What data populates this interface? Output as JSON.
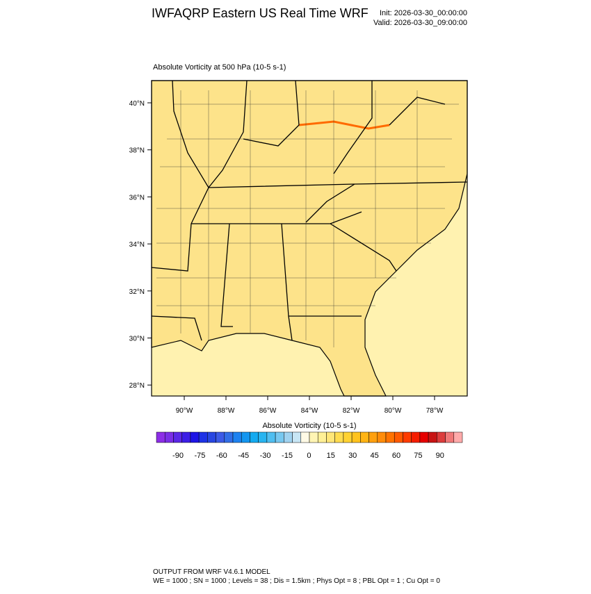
{
  "header": {
    "title": "IWFAQRP Eastern US Real Time WRF",
    "init": "Init: 2026-03-30_00:00:00",
    "valid": "Valid: 2026-03-30_09:00:00"
  },
  "map": {
    "subtitle": "Absolute Vorticity at 500 hPa   (10-5 s-1)",
    "lat_labels": [
      "40°N",
      "38°N",
      "36°N",
      "34°N",
      "32°N",
      "30°N",
      "28°N"
    ],
    "lon_labels": [
      "90°W",
      "88°W",
      "86°W",
      "84°W",
      "82°W",
      "80°W",
      "78°W"
    ]
  },
  "colorbar": {
    "title": "Absolute Vorticity  (10-5 s-1)",
    "labels": [
      -90,
      -75,
      -60,
      -45,
      -30,
      -15,
      0,
      15,
      30,
      45,
      60,
      75,
      90
    ],
    "colors": [
      "#8c2ee6",
      "#7a2ee6",
      "#5a28e6",
      "#3c1ee6",
      "#1e14e6",
      "#1e32e6",
      "#2846e1",
      "#3c5ae6",
      "#326ee6",
      "#1e82f0",
      "#1496f0",
      "#14aaf0",
      "#28b4f0",
      "#50bef0",
      "#78c8f0",
      "#a0d2f0",
      "#c8e6f5",
      "#fffae6",
      "#fff5b4",
      "#fff096",
      "#ffe678",
      "#ffdc50",
      "#ffd232",
      "#ffc31e",
      "#ffb414",
      "#ffa00f",
      "#ff8c0a",
      "#ff7300",
      "#ff5a00",
      "#ff3c00",
      "#f51e00",
      "#e60000",
      "#c81414",
      "#dc3c3c",
      "#f07878",
      "#ffaaaa"
    ]
  },
  "footer": {
    "line1": "OUTPUT FROM WRF V4.6.1 MODEL",
    "line2": "WE = 1000 ; SN = 1000 ; Levels = 38 ; Dis = 1.5km ; Phys Opt = 8 ; PBL Opt = 1 ; Cu Opt = 0"
  }
}
